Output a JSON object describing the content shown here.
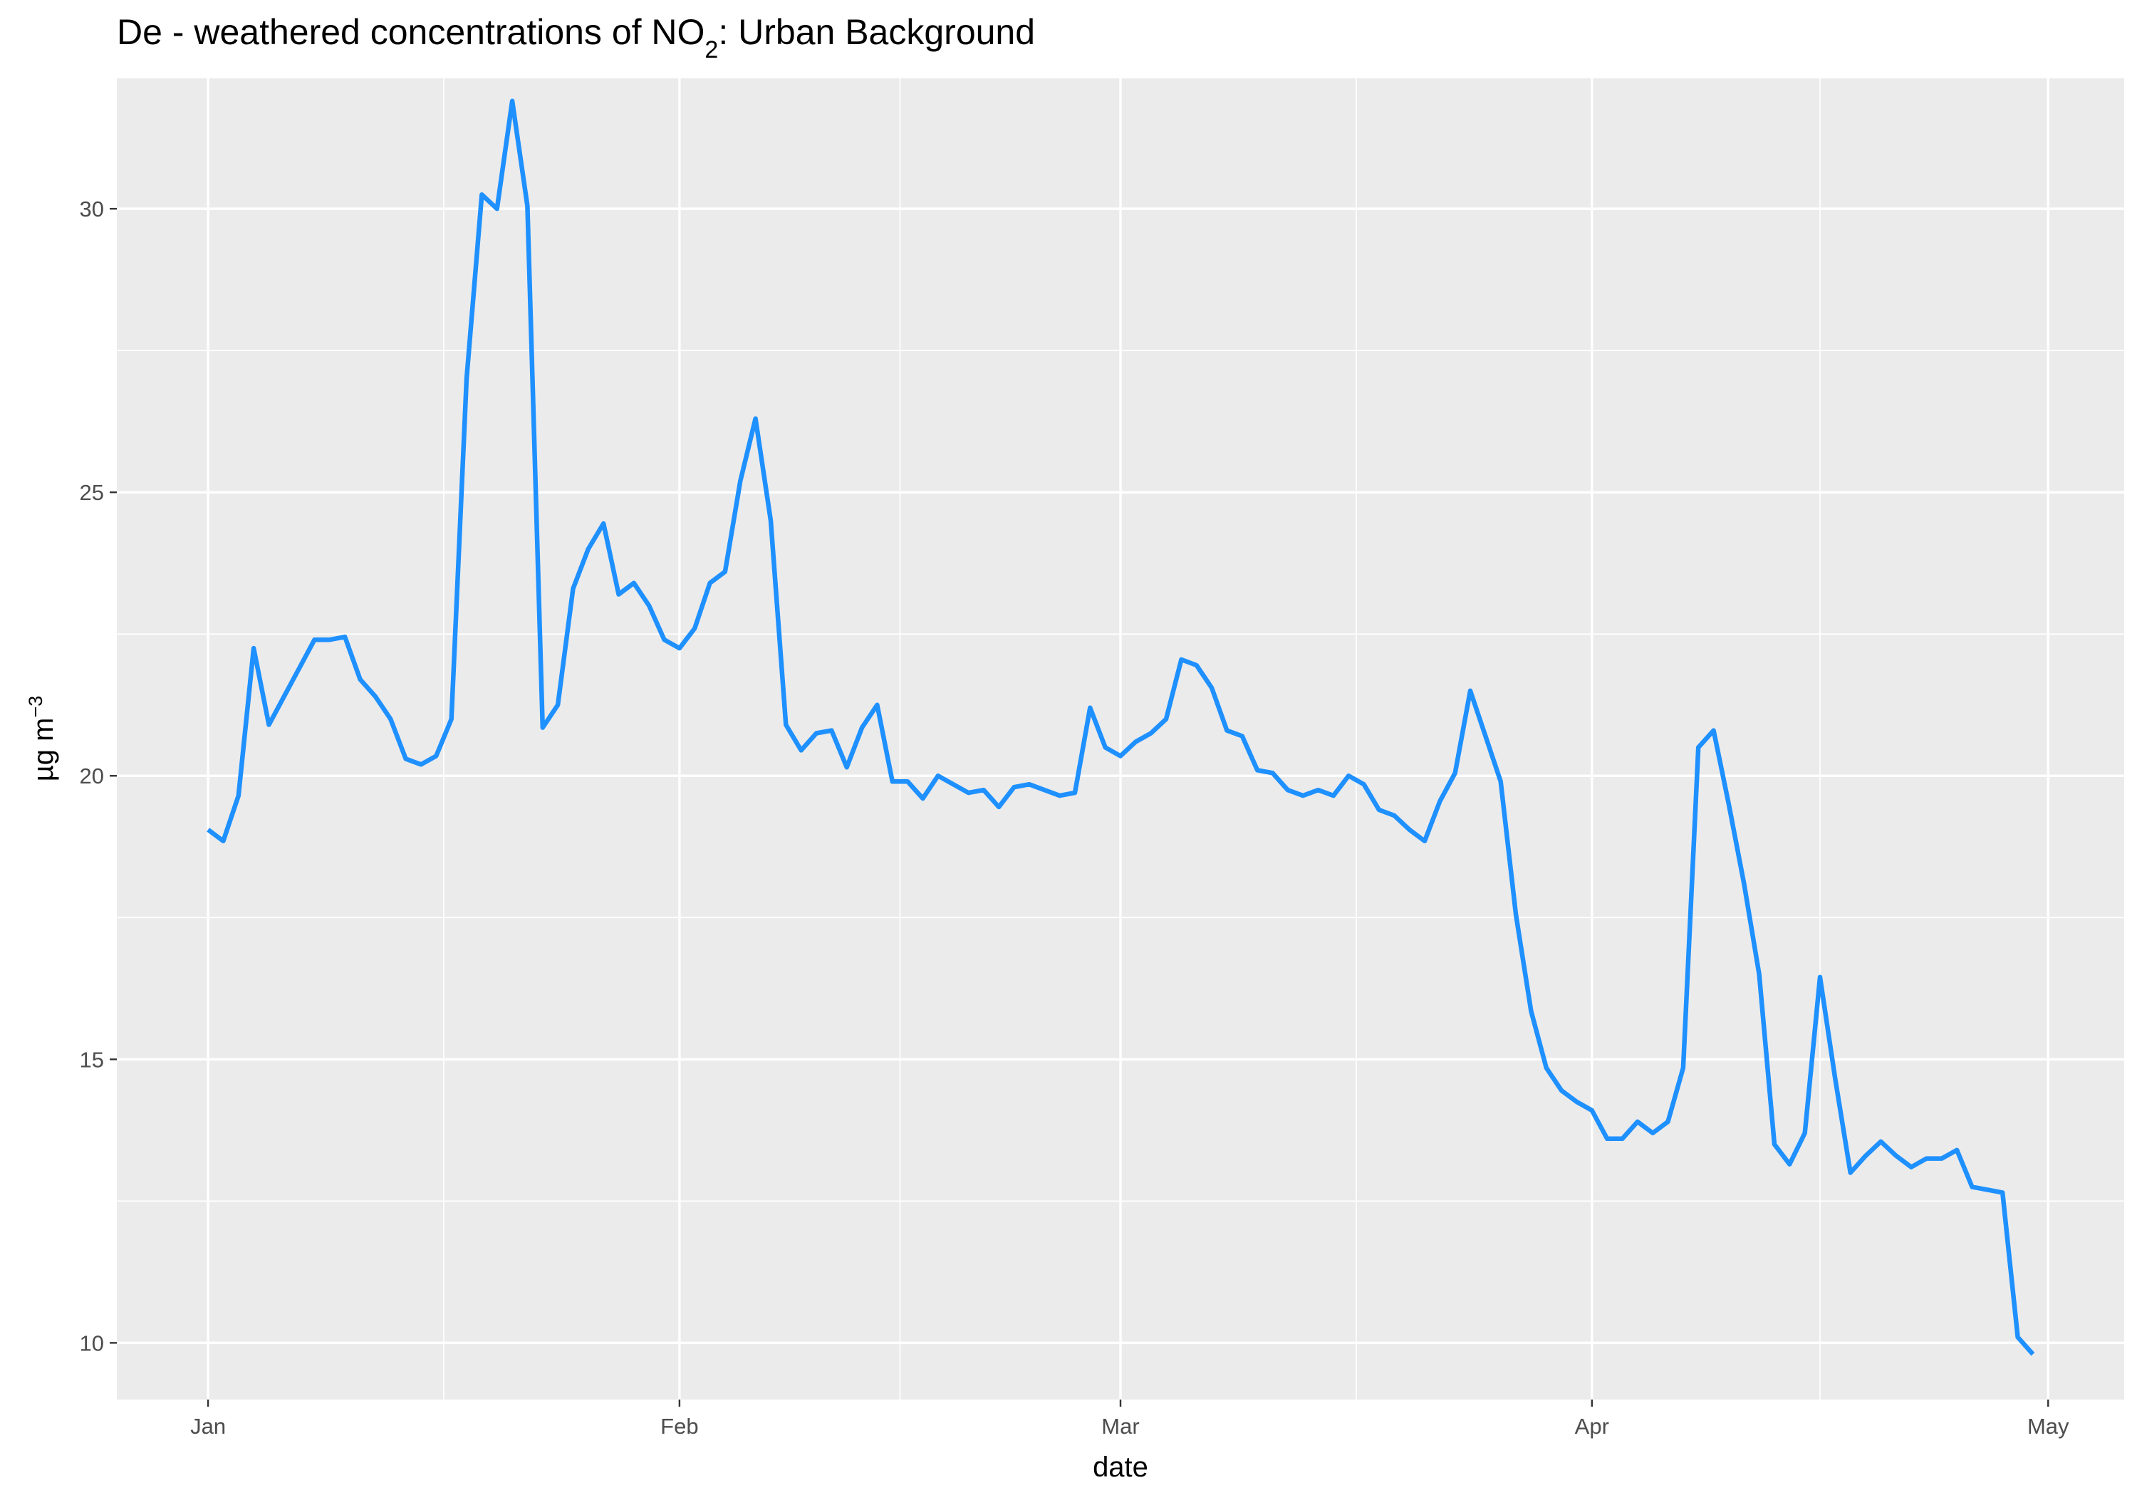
{
  "chart_data": {
    "type": "line",
    "title_main": "De - weathered concentrations of NO",
    "title_sub": "2",
    "title_end": ": Urban Background",
    "xlabel": "date",
    "ylabel_main": "µg m",
    "ylabel_sup": "−3",
    "x_domain": [
      "2020-01-01",
      "2020-04-30"
    ],
    "ylim": [
      9,
      32.3
    ],
    "grid": true,
    "line_color": "#1E90FF",
    "x_ticks": [
      {
        "date": "2020-01-01",
        "label": "Jan"
      },
      {
        "date": "2020-02-01",
        "label": "Feb"
      },
      {
        "date": "2020-03-01",
        "label": "Mar"
      },
      {
        "date": "2020-04-01",
        "label": "Apr"
      },
      {
        "date": "2020-05-01",
        "label": "May"
      }
    ],
    "y_ticks": [
      {
        "value": 10,
        "label": "10"
      },
      {
        "value": 15,
        "label": "15"
      },
      {
        "value": 20,
        "label": "20"
      },
      {
        "value": 25,
        "label": "25"
      },
      {
        "value": 30,
        "label": "30"
      }
    ],
    "x": [
      "2020-01-01",
      "2020-01-02",
      "2020-01-03",
      "2020-01-04",
      "2020-01-05",
      "2020-01-06",
      "2020-01-07",
      "2020-01-08",
      "2020-01-09",
      "2020-01-10",
      "2020-01-11",
      "2020-01-12",
      "2020-01-13",
      "2020-01-14",
      "2020-01-15",
      "2020-01-16",
      "2020-01-17",
      "2020-01-18",
      "2020-01-19",
      "2020-01-20",
      "2020-01-21",
      "2020-01-22",
      "2020-01-23",
      "2020-01-24",
      "2020-01-25",
      "2020-01-26",
      "2020-01-27",
      "2020-01-28",
      "2020-01-29",
      "2020-01-30",
      "2020-01-31",
      "2020-02-01",
      "2020-02-02",
      "2020-02-03",
      "2020-02-04",
      "2020-02-05",
      "2020-02-06",
      "2020-02-07",
      "2020-02-08",
      "2020-02-09",
      "2020-02-10",
      "2020-02-11",
      "2020-02-12",
      "2020-02-13",
      "2020-02-14",
      "2020-02-15",
      "2020-02-16",
      "2020-02-17",
      "2020-02-18",
      "2020-02-19",
      "2020-02-20",
      "2020-02-21",
      "2020-02-22",
      "2020-02-23",
      "2020-02-24",
      "2020-02-25",
      "2020-02-26",
      "2020-02-27",
      "2020-02-28",
      "2020-02-29",
      "2020-03-01",
      "2020-03-02",
      "2020-03-03",
      "2020-03-04",
      "2020-03-05",
      "2020-03-06",
      "2020-03-07",
      "2020-03-08",
      "2020-03-09",
      "2020-03-10",
      "2020-03-11",
      "2020-03-12",
      "2020-03-13",
      "2020-03-14",
      "2020-03-15",
      "2020-03-16",
      "2020-03-17",
      "2020-03-18",
      "2020-03-19",
      "2020-03-20",
      "2020-03-21",
      "2020-03-22",
      "2020-03-23",
      "2020-03-24",
      "2020-03-25",
      "2020-03-26",
      "2020-03-27",
      "2020-03-28",
      "2020-03-29",
      "2020-03-30",
      "2020-03-31",
      "2020-04-01",
      "2020-04-02",
      "2020-04-03",
      "2020-04-04",
      "2020-04-05",
      "2020-04-06",
      "2020-04-07",
      "2020-04-08",
      "2020-04-09",
      "2020-04-10",
      "2020-04-11",
      "2020-04-12",
      "2020-04-13",
      "2020-04-14",
      "2020-04-15",
      "2020-04-16",
      "2020-04-17",
      "2020-04-18",
      "2020-04-19",
      "2020-04-20",
      "2020-04-21",
      "2020-04-22",
      "2020-04-23",
      "2020-04-24",
      "2020-04-25",
      "2020-04-26",
      "2020-04-27",
      "2020-04-28",
      "2020-04-29",
      "2020-04-30"
    ],
    "values": [
      19.05,
      18.85,
      19.65,
      22.25,
      20.9,
      21.4,
      21.9,
      22.4,
      22.4,
      22.45,
      21.7,
      21.4,
      21.0,
      20.3,
      20.2,
      20.35,
      21.0,
      27.0,
      30.25,
      30.0,
      31.9,
      30.05,
      20.85,
      21.25,
      23.3,
      24.0,
      24.45,
      23.2,
      23.4,
      23.0,
      22.4,
      22.25,
      22.6,
      23.4,
      23.6,
      25.2,
      26.3,
      24.5,
      20.9,
      20.45,
      20.75,
      20.8,
      20.15,
      20.85,
      21.25,
      19.9,
      19.9,
      19.6,
      20.0,
      19.85,
      19.7,
      19.75,
      19.45,
      19.8,
      19.85,
      19.75,
      19.65,
      19.7,
      21.2,
      20.5,
      20.35,
      20.6,
      20.75,
      21.0,
      22.05,
      21.95,
      21.55,
      20.8,
      20.7,
      20.1,
      20.05,
      19.75,
      19.65,
      19.75,
      19.65,
      20.0,
      19.85,
      19.4,
      19.3,
      19.05,
      18.85,
      19.55,
      20.05,
      21.5,
      20.7,
      19.9,
      17.55,
      15.85,
      14.85,
      14.45,
      14.25,
      14.1,
      13.6,
      13.6,
      13.9,
      13.7,
      13.9,
      14.85,
      20.5,
      20.8,
      19.5,
      18.1,
      16.5,
      13.5,
      13.15,
      13.7,
      16.45,
      14.65,
      13.0,
      13.3,
      13.55,
      13.3,
      13.1,
      13.25,
      13.25,
      13.4,
      12.75,
      12.7,
      12.65,
      10.1,
      9.8
    ]
  }
}
